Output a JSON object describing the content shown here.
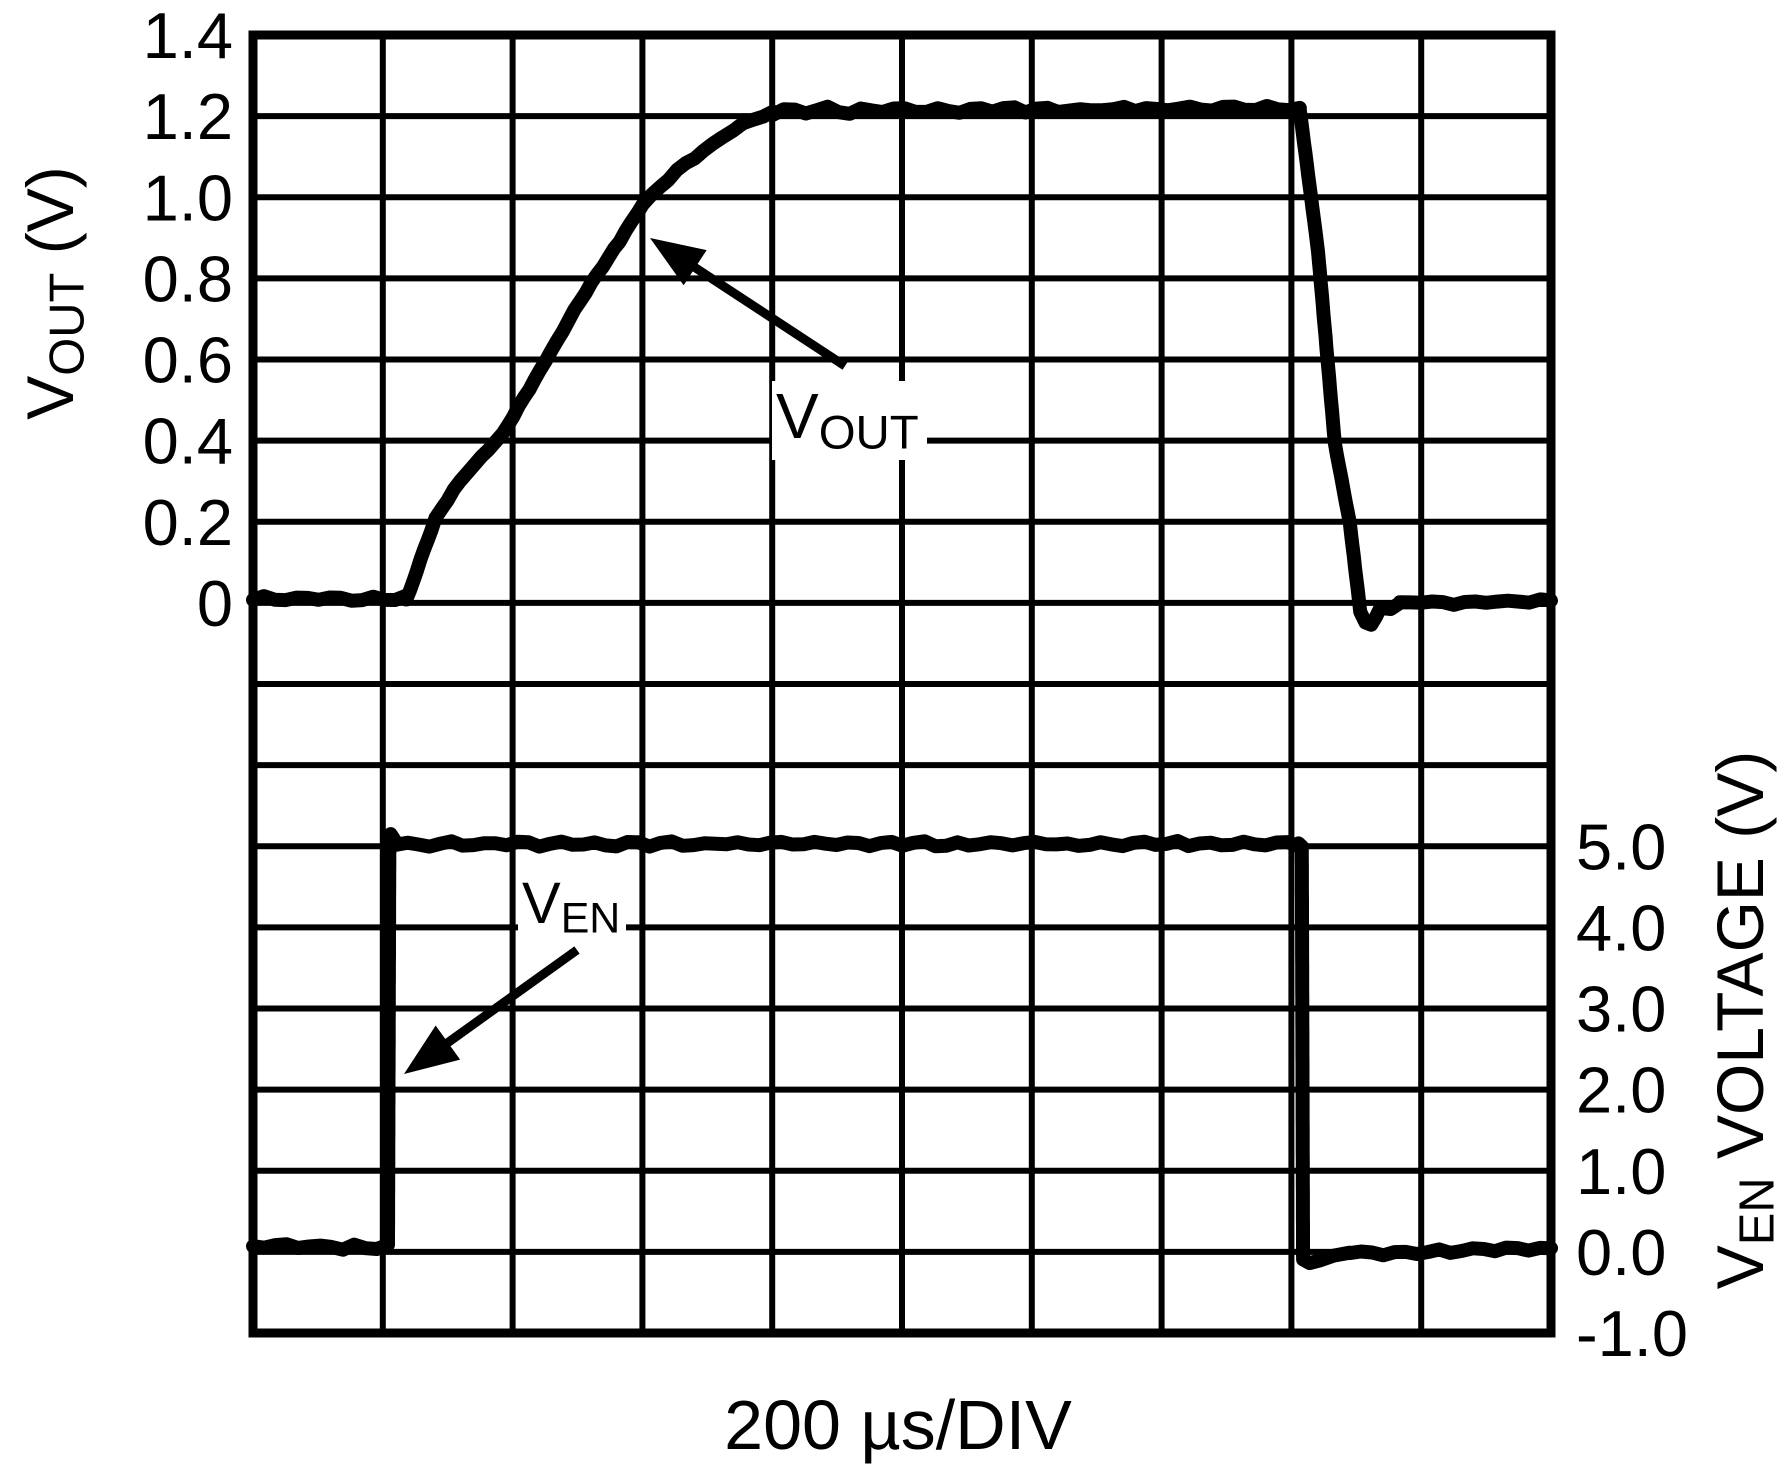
{
  "chart_data": {
    "type": "line",
    "title": "",
    "xlabel": "200 µs/DIV",
    "grid": {
      "rows": 16,
      "cols": 10,
      "line_color": "#000000",
      "background": "#ffffff"
    },
    "x_axis": {
      "unit": "µs",
      "us_per_div": 200,
      "divisions": 10,
      "range_us": [
        0,
        2000
      ]
    },
    "left_axis": {
      "title": {
        "main": "V",
        "sub": "OUT",
        "rest": " (V)"
      },
      "unit": "V",
      "volts_per_div": 0.2,
      "top_value": 1.4,
      "ticks": [
        {
          "label": "1.4",
          "v": 1.4
        },
        {
          "label": "1.2",
          "v": 1.2
        },
        {
          "label": "1.0",
          "v": 1.0
        },
        {
          "label": "0.8",
          "v": 0.8
        },
        {
          "label": "0.6",
          "v": 0.6
        },
        {
          "label": "0.4",
          "v": 0.4
        },
        {
          "label": "0.2",
          "v": 0.2
        },
        {
          "label": "0",
          "v": 0.0
        }
      ]
    },
    "right_axis": {
      "title": {
        "main": "V",
        "sub": "EN",
        "rest": " VOLTAGE (V)"
      },
      "unit": "V",
      "volts_per_div": 1.0,
      "top_value": 15.0,
      "ticks": [
        {
          "label": "5.0",
          "v": 5.0
        },
        {
          "label": "4.0",
          "v": 4.0
        },
        {
          "label": "3.0",
          "v": 3.0
        },
        {
          "label": "2.0",
          "v": 2.0
        },
        {
          "label": "1.0",
          "v": 1.0
        },
        {
          "label": "0.0",
          "v": 0.0
        },
        {
          "label": "-1.0",
          "v": -1.0
        }
      ]
    },
    "series": [
      {
        "name": "VOUT",
        "axis": "left",
        "color": "#000000",
        "levels": {
          "low_v": 0.0,
          "plateau_v": 1.21
        },
        "segments": [
          {
            "points": [
              [
                0,
                0.01
              ],
              [
                236,
                0.01
              ]
            ],
            "noise_v": 0.009
          },
          {
            "points": [
              [
                236,
                0.01
              ],
              [
                242,
                0.03
              ],
              [
                258,
                0.105
              ],
              [
                281,
                0.207
              ],
              [
                300,
                0.255
              ],
              [
                319,
                0.301
              ],
              [
                352,
                0.36
              ],
              [
                385,
                0.417
              ],
              [
                442,
                0.572
              ],
              [
                504,
                0.745
              ],
              [
                565,
                0.893
              ],
              [
                601,
                0.984
              ],
              [
                653,
                1.065
              ],
              [
                709,
                1.132
              ],
              [
                755,
                1.181
              ],
              [
                801,
                1.21
              ]
            ],
            "noise_v": 0.003
          },
          {
            "points": [
              [
                801,
                1.213
              ],
              [
                1613,
                1.218
              ]
            ],
            "noise_v": 0.01
          },
          {
            "points": [
              [
                1613,
                1.215
              ],
              [
                1641,
                0.868
              ],
              [
                1667,
                0.392
              ],
              [
                1690,
                0.197
              ],
              [
                1706,
                -0.02
              ],
              [
                1714,
                -0.05
              ],
              [
                1723,
                -0.055
              ],
              [
                1737,
                -0.012
              ],
              [
                1753,
                -0.016
              ],
              [
                1767,
                0.0
              ]
            ],
            "noise_v": 0.002
          },
          {
            "points": [
              [
                1767,
                0.0
              ],
              [
                2000,
                0.004
              ]
            ],
            "noise_v": 0.008
          }
        ]
      },
      {
        "name": "VEN",
        "axis": "right",
        "color": "#000000",
        "levels": {
          "low_v": 0.0,
          "plateau_v": 5.0
        },
        "segments": [
          {
            "points": [
              [
                0,
                0.06
              ],
              [
                208,
                0.06
              ]
            ],
            "noise_v": 0.045
          },
          {
            "points": [
              [
                208,
                0.1
              ],
              [
                210,
                4.9
              ],
              [
                212,
                5.15
              ],
              [
                221,
                5.04
              ]
            ],
            "noise_v": 0
          },
          {
            "points": [
              [
                221,
                5.03
              ],
              [
                1611,
                5.03
              ]
            ],
            "noise_v": 0.04
          },
          {
            "points": [
              [
                1611,
                5.03
              ],
              [
                1616,
                5.0
              ],
              [
                1618,
                -0.1
              ],
              [
                1628,
                -0.14
              ],
              [
                1645,
                -0.1
              ],
              [
                1665,
                -0.05
              ],
              [
                1690,
                -0.02
              ]
            ],
            "noise_v": 0.012
          },
          {
            "points": [
              [
                1690,
                -0.01
              ],
              [
                2000,
                0.04
              ]
            ],
            "noise_v": 0.045
          }
        ]
      }
    ],
    "annotations": [
      {
        "id": "vout",
        "label": {
          "main": "V",
          "sub": "OUT"
        }
      },
      {
        "id": "ven",
        "label": {
          "main": "V",
          "sub": "EN"
        }
      }
    ]
  }
}
